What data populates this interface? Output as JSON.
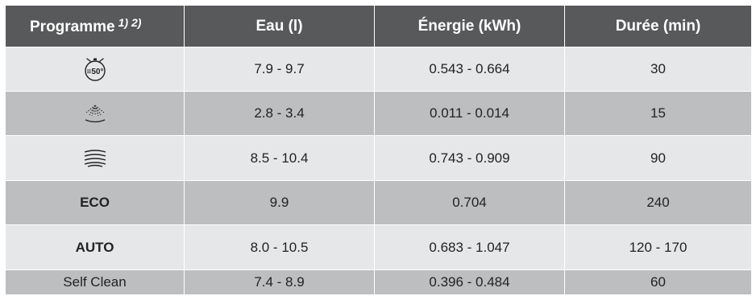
{
  "table": {
    "headers": {
      "programme": "Programme",
      "footnotes": "1) 2)",
      "water": "Eau (l)",
      "energy": "Énergie (kWh)",
      "duration": "Durée (min)"
    },
    "rows": [
      {
        "programme_icon": "quick-50-timer-icon",
        "programme_icon_text": "≡50°",
        "water": "7.9 - 9.7",
        "energy": "0.543 - 0.664",
        "duration": "30"
      },
      {
        "programme_icon": "rinse-shower-icon",
        "water": "2.8 - 3.4",
        "energy": "0.011 - 0.014",
        "duration": "15"
      },
      {
        "programme_icon": "intensive-wave-icon",
        "water": "8.5 - 10.4",
        "energy": "0.743 - 0.909",
        "duration": "90"
      },
      {
        "programme": "ECO",
        "water": "9.9",
        "energy": "0.704",
        "duration": "240"
      },
      {
        "programme": "AUTO",
        "water": "8.0 - 10.5",
        "energy": "0.683 - 1.047",
        "duration": "120 - 170"
      },
      {
        "programme": "Self Clean",
        "water": "7.4 - 8.9",
        "energy": "0.396 - 0.484",
        "duration": "60"
      }
    ]
  },
  "colors": {
    "header_bg": "#58595b",
    "row_light": "#e6e7e8",
    "row_dark": "#bcbec0"
  }
}
